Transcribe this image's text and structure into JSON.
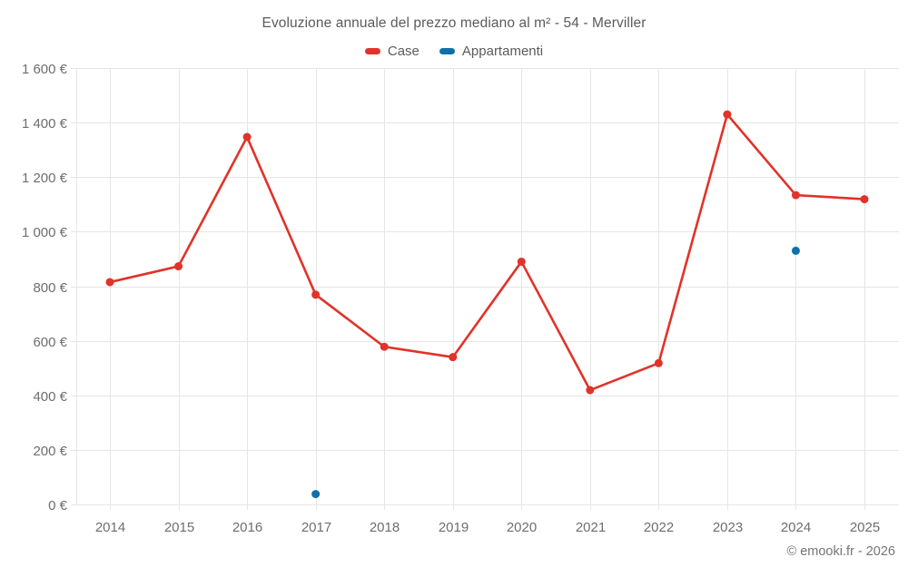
{
  "chart_data": {
    "type": "line",
    "title": "Evoluzione annuale del prezzo mediano al m² - 54 - Merviller",
    "categories": [
      "2014",
      "2015",
      "2016",
      "2017",
      "2018",
      "2019",
      "2020",
      "2021",
      "2022",
      "2023",
      "2024",
      "2025"
    ],
    "series": [
      {
        "name": "Case",
        "color": "#e03329",
        "style": "line+points",
        "values": [
          815,
          873,
          1347,
          769,
          578,
          540,
          890,
          419,
          518,
          1430,
          1134,
          1119
        ]
      },
      {
        "name": "Appartamenti",
        "color": "#106fa9",
        "style": "points",
        "values": [
          null,
          null,
          null,
          38,
          null,
          null,
          null,
          null,
          null,
          null,
          930,
          null
        ]
      }
    ],
    "xlabel": "",
    "ylabel": "",
    "ylim": [
      0,
      1600
    ],
    "ytick_step": 200,
    "ytick_labels": [
      "0 €",
      "200 €",
      "400 €",
      "600 €",
      "800 €",
      "1 000 €",
      "1 200 €",
      "1 400 €",
      "1 600 €"
    ],
    "grid": true,
    "legend_position": "top-center",
    "colors": {
      "grid": "#e6e6e6",
      "axis_text": "#6e6e6e",
      "title_text": "#5a5b5d",
      "copyright_text": "#757575",
      "background": "#ffffff"
    }
  },
  "footer": {
    "copyright": "© emooki.fr - 2026"
  }
}
